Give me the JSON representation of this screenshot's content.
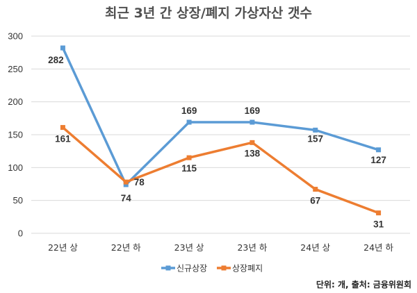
{
  "chart_data": {
    "type": "line",
    "title": "최근 3년 간 상장/폐지 가상자산 갯수",
    "categories": [
      "22년 상",
      "22년 하",
      "23년 상",
      "23년 하",
      "24년 상",
      "24년 하"
    ],
    "ylim": [
      0,
      300
    ],
    "yticks": [
      0,
      50,
      100,
      150,
      200,
      250,
      300
    ],
    "grid": true,
    "legend_position": "bottom",
    "series": [
      {
        "name": "신규상장",
        "color": "#5B9BD5",
        "values": [
          282,
          74,
          169,
          169,
          157,
          127
        ]
      },
      {
        "name": "상장폐지",
        "color": "#ED7D31",
        "values": [
          161,
          78,
          115,
          138,
          67,
          31
        ]
      }
    ],
    "source_note": "단위: 개, 출처: 금융위원회"
  }
}
